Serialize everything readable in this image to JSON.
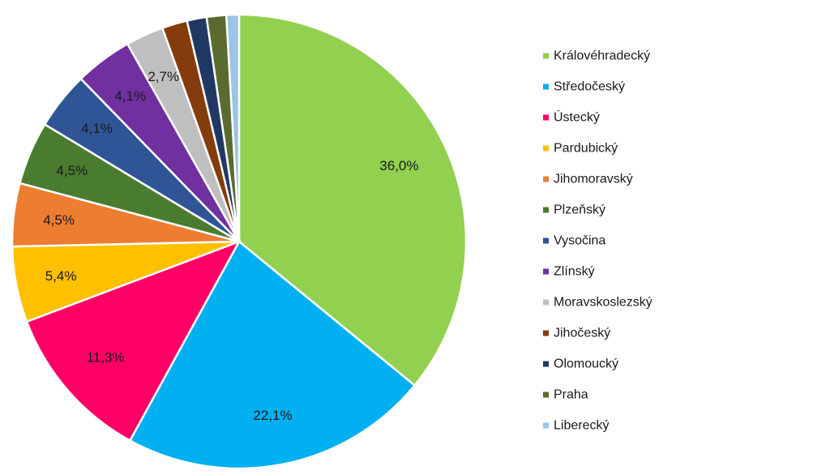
{
  "chart_data": {
    "type": "pie",
    "title": "",
    "legend_position": "right",
    "slices": [
      {
        "label": "Královéhradecký",
        "value": 36.0,
        "value_label": "36,0%",
        "color": "#92d050"
      },
      {
        "label": "Středočeský",
        "value": 22.1,
        "value_label": "22,1%",
        "color": "#00b0f0"
      },
      {
        "label": "Ústecký",
        "value": 11.3,
        "value_label": "11,3%",
        "color": "#ff0066"
      },
      {
        "label": "Pardubický",
        "value": 5.4,
        "value_label": "5,4%",
        "color": "#ffc000"
      },
      {
        "label": "Jihomoravský",
        "value": 4.5,
        "value_label": "4,5%",
        "color": "#ed7d31"
      },
      {
        "label": "Plzeňský",
        "value": 4.5,
        "value_label": "4,5%",
        "color": "#4a7c2f"
      },
      {
        "label": "Vysočina",
        "value": 4.1,
        "value_label": "4,1%",
        "color": "#2f5597"
      },
      {
        "label": "Zlínský",
        "value": 4.1,
        "value_label": "4,1%",
        "color": "#7030a0"
      },
      {
        "label": "Moravskoslezský",
        "value": 2.7,
        "value_label": "2,7%",
        "color": "#bfbfbf"
      },
      {
        "label": "Jihočeský",
        "value": 1.8,
        "value_label": "",
        "color": "#843c0c"
      },
      {
        "label": "Olomoucký",
        "value": 1.4,
        "value_label": "",
        "color": "#1f3864"
      },
      {
        "label": "Praha",
        "value": 1.4,
        "value_label": "",
        "color": "#5a6b2f"
      },
      {
        "label": "Liberecký",
        "value": 0.9,
        "value_label": "",
        "color": "#9dc3e6"
      }
    ]
  }
}
